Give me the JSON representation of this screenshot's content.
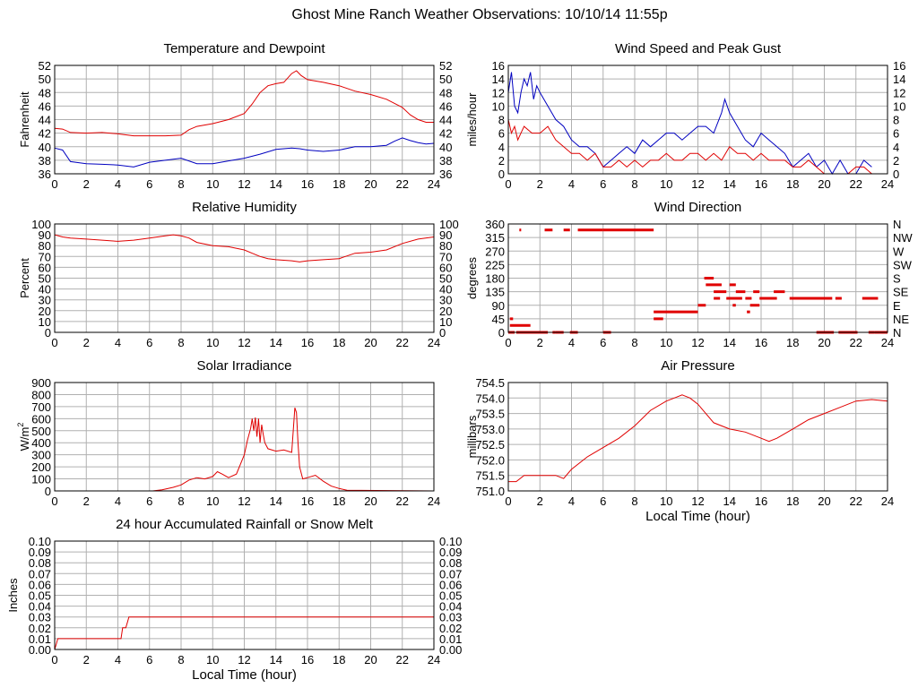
{
  "title": "Ghost Mine Ranch Weather Observations: 10/10/14 11:55p",
  "chart_data": [
    {
      "id": "temperature",
      "type": "line",
      "title": "Temperature and Dewpoint",
      "ylabel": "Fahrenheit",
      "xlabel": "",
      "xlim": [
        0,
        24
      ],
      "ylim": [
        36,
        52
      ],
      "xticks": [
        "0",
        "2",
        "4",
        "6",
        "8",
        "10",
        "12",
        "14",
        "16",
        "18",
        "20",
        "22",
        "24"
      ],
      "yticks": [
        "36",
        "38",
        "40",
        "42",
        "44",
        "46",
        "48",
        "50",
        "52"
      ],
      "right_ticks": [
        "36",
        "38",
        "40",
        "42",
        "44",
        "46",
        "48",
        "50",
        "52"
      ],
      "grid": true,
      "series": [
        {
          "color": "#e00000",
          "x": [
            0,
            0.5,
            1,
            2,
            3,
            4,
            5,
            6,
            7,
            8,
            8.5,
            9,
            10,
            11,
            12,
            12.5,
            13,
            13.5,
            14,
            14.5,
            15,
            15.3,
            15.6,
            16,
            17,
            18,
            19,
            20,
            21,
            22,
            22.5,
            23,
            23.5,
            24
          ],
          "values": [
            42.7,
            42.6,
            42.1,
            42.0,
            42.1,
            41.9,
            41.6,
            41.6,
            41.6,
            41.7,
            42.5,
            43.0,
            43.4,
            44.0,
            44.9,
            46.3,
            48.0,
            49.0,
            49.3,
            49.5,
            50.8,
            51.2,
            50.5,
            49.9,
            49.5,
            49.0,
            48.2,
            47.7,
            47.0,
            45.8,
            44.7,
            44.0,
            43.6,
            43.6
          ]
        },
        {
          "color": "#0000c0",
          "x": [
            0,
            0.5,
            1,
            2,
            3,
            4,
            5,
            6,
            7,
            8,
            9,
            10,
            11,
            12,
            13,
            14,
            15,
            15.5,
            16,
            17,
            18,
            19,
            20,
            21,
            21.5,
            22,
            22.5,
            23,
            23.5,
            24
          ],
          "values": [
            39.8,
            39.5,
            37.8,
            37.5,
            37.4,
            37.3,
            37.0,
            37.7,
            38.0,
            38.3,
            37.5,
            37.5,
            37.9,
            38.3,
            38.9,
            39.6,
            39.8,
            39.7,
            39.5,
            39.3,
            39.5,
            40.0,
            40.0,
            40.2,
            40.8,
            41.3,
            40.9,
            40.6,
            40.4,
            40.5
          ]
        }
      ]
    },
    {
      "id": "wind-speed",
      "type": "line",
      "title": "Wind Speed and Peak Gust",
      "ylabel": "miles/hour",
      "xlabel": "",
      "xlim": [
        0,
        24
      ],
      "ylim": [
        0,
        16
      ],
      "xticks": [
        "0",
        "2",
        "4",
        "6",
        "8",
        "10",
        "12",
        "14",
        "16",
        "18",
        "20",
        "22",
        "24"
      ],
      "yticks": [
        "0",
        "2",
        "4",
        "6",
        "8",
        "10",
        "12",
        "14",
        "16"
      ],
      "right_ticks": [
        "0",
        "2",
        "4",
        "6",
        "8",
        "10",
        "12",
        "14",
        "16"
      ],
      "grid": true,
      "series": [
        {
          "color": "#0000c0",
          "x": [
            0,
            0.2,
            0.4,
            0.6,
            0.8,
            1,
            1.2,
            1.4,
            1.6,
            1.8,
            2,
            2.5,
            3,
            3.5,
            4,
            4.5,
            5,
            5.5,
            6,
            6.5,
            7,
            7.5,
            8,
            8.5,
            9,
            9.5,
            10,
            10.5,
            11,
            11.5,
            12,
            12.5,
            13,
            13.5,
            13.7,
            14,
            14.5,
            15,
            15.5,
            16,
            16.5,
            17,
            17.5,
            18,
            18.5,
            19,
            19.5,
            20,
            20.5,
            21,
            21.5,
            22,
            22.5,
            23
          ],
          "values": [
            12,
            15,
            10,
            9,
            12,
            14,
            13,
            15,
            11,
            13,
            12,
            10,
            8,
            7,
            5,
            4,
            4,
            3,
            1,
            2,
            3,
            4,
            3,
            5,
            4,
            5,
            6,
            6,
            5,
            6,
            7,
            7,
            6,
            9,
            11,
            9,
            7,
            5,
            4,
            6,
            5,
            4,
            3,
            1,
            2,
            3,
            1,
            2,
            0,
            2,
            0,
            0,
            2,
            1
          ]
        },
        {
          "color": "#e00000",
          "x": [
            0,
            0.2,
            0.4,
            0.6,
            0.8,
            1,
            1.5,
            2,
            2.5,
            3,
            3.5,
            4,
            4.5,
            5,
            5.5,
            6,
            6.5,
            7,
            7.5,
            8,
            8.5,
            9,
            9.5,
            10,
            10.5,
            11,
            11.5,
            12,
            12.5,
            13,
            13.5,
            14,
            14.5,
            15,
            15.5,
            16,
            16.5,
            17,
            17.5,
            18,
            18.5,
            19,
            19.5,
            20,
            20.5,
            21,
            21.5,
            22,
            22.5,
            23
          ],
          "values": [
            8,
            6,
            7,
            5,
            6,
            7,
            6,
            6,
            7,
            5,
            4,
            3,
            3,
            2,
            3,
            1,
            1,
            2,
            1,
            2,
            1,
            2,
            2,
            3,
            2,
            2,
            3,
            3,
            2,
            3,
            2,
            4,
            3,
            3,
            2,
            3,
            2,
            2,
            2,
            1,
            1,
            2,
            1,
            0,
            0,
            0,
            0,
            1,
            1,
            0
          ]
        }
      ]
    },
    {
      "id": "humidity",
      "type": "line",
      "title": "Relative Humidity",
      "ylabel": "Percent",
      "xlabel": "",
      "xlim": [
        0,
        24
      ],
      "ylim": [
        0,
        100
      ],
      "xticks": [
        "0",
        "2",
        "4",
        "6",
        "8",
        "10",
        "12",
        "14",
        "16",
        "18",
        "20",
        "22",
        "24"
      ],
      "yticks": [
        "0",
        "10",
        "20",
        "30",
        "40",
        "50",
        "60",
        "70",
        "80",
        "90",
        "100"
      ],
      "right_ticks": [
        "0",
        "10",
        "20",
        "30",
        "40",
        "50",
        "60",
        "70",
        "80",
        "90",
        "100"
      ],
      "grid": true,
      "series": [
        {
          "color": "#e00000",
          "x": [
            0,
            0.5,
            1,
            2,
            3,
            4,
            5,
            6,
            7,
            7.5,
            8,
            8.5,
            9,
            10,
            11,
            12,
            12.5,
            13,
            13.5,
            14,
            15,
            15.5,
            16,
            17,
            18,
            19,
            20,
            21,
            22,
            23,
            24
          ],
          "values": [
            90,
            88,
            87,
            86,
            85,
            84,
            85,
            87,
            89,
            90,
            89,
            87,
            83,
            80,
            79,
            76,
            73,
            70,
            68,
            67,
            66,
            65,
            66,
            67,
            68,
            73,
            74,
            76,
            82,
            86,
            88
          ]
        }
      ]
    },
    {
      "id": "wind-direction",
      "type": "scatter",
      "title": "Wind Direction",
      "ylabel": "degrees",
      "xlabel": "",
      "xlim": [
        0,
        24
      ],
      "ylim": [
        0,
        360
      ],
      "xticks": [
        "0",
        "2",
        "4",
        "6",
        "8",
        "10",
        "12",
        "14",
        "16",
        "18",
        "20",
        "22",
        "24"
      ],
      "yticks": [
        "0",
        "45",
        "90",
        "135",
        "180",
        "225",
        "270",
        "315",
        "360"
      ],
      "right_ticks": [
        "N",
        "NE",
        "E",
        "SE",
        "S",
        "SW",
        "W",
        "NW",
        "N"
      ],
      "grid": true,
      "segments": [
        {
          "x": [
            0.0,
            0.4
          ],
          "y": 0
        },
        {
          "x": [
            0.1,
            1.4
          ],
          "y": 23
        },
        {
          "x": [
            0.1,
            0.3
          ],
          "y": 45
        },
        {
          "x": [
            0.7,
            0.8
          ],
          "y": 340
        },
        {
          "x": [
            0.5,
            2.5
          ],
          "y": 0
        },
        {
          "x": [
            2.3,
            2.8
          ],
          "y": 340
        },
        {
          "x": [
            2.8,
            3.0
          ],
          "y": 0
        },
        {
          "x": [
            3.0,
            3.5
          ],
          "y": 0
        },
        {
          "x": [
            3.5,
            3.9
          ],
          "y": 340
        },
        {
          "x": [
            3.9,
            4.4
          ],
          "y": 0
        },
        {
          "x": [
            4.4,
            6.0
          ],
          "y": 340
        },
        {
          "x": [
            6.0,
            6.5
          ],
          "y": 0
        },
        {
          "x": [
            6.0,
            9.2
          ],
          "y": 340
        },
        {
          "x": [
            9.2,
            9.8
          ],
          "y": 45
        },
        {
          "x": [
            9.2,
            12.0
          ],
          "y": 68
        },
        {
          "x": [
            12.0,
            12.5
          ],
          "y": 90
        },
        {
          "x": [
            12.4,
            13.0
          ],
          "y": 180
        },
        {
          "x": [
            12.5,
            13.5
          ],
          "y": 158
        },
        {
          "x": [
            13.0,
            13.8
          ],
          "y": 135
        },
        {
          "x": [
            13.0,
            13.4
          ],
          "y": 113
        },
        {
          "x": [
            13.8,
            14.8
          ],
          "y": 113
        },
        {
          "x": [
            14.0,
            14.4
          ],
          "y": 158
        },
        {
          "x": [
            14.2,
            14.4
          ],
          "y": 90
        },
        {
          "x": [
            14.4,
            15.0
          ],
          "y": 135
        },
        {
          "x": [
            15.0,
            15.4
          ],
          "y": 113
        },
        {
          "x": [
            15.1,
            15.3
          ],
          "y": 68
        },
        {
          "x": [
            15.3,
            15.9
          ],
          "y": 90
        },
        {
          "x": [
            15.5,
            15.9
          ],
          "y": 135
        },
        {
          "x": [
            15.9,
            17.0
          ],
          "y": 113
        },
        {
          "x": [
            16.8,
            17.5
          ],
          "y": 135
        },
        {
          "x": [
            17.8,
            20.5
          ],
          "y": 113
        },
        {
          "x": [
            19.5,
            20.6
          ],
          "y": 0
        },
        {
          "x": [
            20.7,
            21.1
          ],
          "y": 113
        },
        {
          "x": [
            20.9,
            22.1
          ],
          "y": 0
        },
        {
          "x": [
            22.4,
            23.4
          ],
          "y": 113
        },
        {
          "x": [
            22.8,
            23.2
          ],
          "y": 0
        },
        {
          "x": [
            23.2,
            24.0
          ],
          "y": 0
        }
      ]
    },
    {
      "id": "solar",
      "type": "line",
      "title": "Solar Irradiance",
      "ylabel": "W/m",
      "ylabel_sup": "2",
      "xlabel": "",
      "xlim": [
        0,
        24
      ],
      "ylim": [
        0,
        900
      ],
      "xticks": [
        "0",
        "2",
        "4",
        "6",
        "8",
        "10",
        "12",
        "14",
        "16",
        "18",
        "20",
        "22",
        "24"
      ],
      "yticks": [
        "0",
        "100",
        "200",
        "300",
        "400",
        "500",
        "600",
        "700",
        "800",
        "900"
      ],
      "right_ticks": [],
      "grid": true,
      "series": [
        {
          "color": "#e00000",
          "x": [
            0,
            6.2,
            6.8,
            7.5,
            8,
            8.5,
            9,
            9.5,
            10,
            10.3,
            10.6,
            11,
            11.5,
            12,
            12.2,
            12.4,
            12.5,
            12.6,
            12.7,
            12.8,
            12.9,
            13,
            13.1,
            13.2,
            13.3,
            13.5,
            14,
            14.5,
            15,
            15.1,
            15.2,
            15.3,
            15.4,
            15.5,
            15.7,
            16,
            16.5,
            17,
            17.5,
            18,
            18.5,
            24
          ],
          "values": [
            0,
            0,
            10,
            30,
            50,
            90,
            110,
            100,
            120,
            160,
            140,
            110,
            140,
            300,
            420,
            520,
            600,
            500,
            610,
            450,
            600,
            400,
            550,
            470,
            400,
            350,
            330,
            340,
            320,
            500,
            690,
            650,
            400,
            200,
            100,
            110,
            130,
            80,
            40,
            20,
            5,
            0
          ]
        }
      ]
    },
    {
      "id": "pressure",
      "type": "line",
      "title": "Air Pressure",
      "ylabel": "millibars",
      "xlabel": "Local Time (hour)",
      "xlim": [
        0,
        24
      ],
      "ylim": [
        751.0,
        754.5
      ],
      "xticks": [
        "0",
        "2",
        "4",
        "6",
        "8",
        "10",
        "12",
        "14",
        "16",
        "18",
        "20",
        "22",
        "24"
      ],
      "yticks": [
        "751.0",
        "751.5",
        "752.0",
        "752.5",
        "753.0",
        "753.5",
        "754.0",
        "754.5"
      ],
      "right_ticks": [],
      "grid": true,
      "series": [
        {
          "color": "#e00000",
          "x": [
            0,
            0.5,
            1,
            2,
            3,
            3.5,
            4,
            5,
            6,
            7,
            8,
            9,
            10,
            10.5,
            11,
            11.5,
            12,
            12.5,
            13,
            14,
            15,
            16,
            16.5,
            17,
            18,
            19,
            20,
            21,
            22,
            23,
            24
          ],
          "values": [
            751.3,
            751.3,
            751.5,
            751.5,
            751.5,
            751.4,
            751.7,
            752.1,
            752.4,
            752.7,
            753.1,
            753.6,
            753.9,
            754.0,
            754.1,
            754.0,
            753.8,
            753.5,
            753.2,
            753.0,
            752.9,
            752.7,
            752.6,
            752.7,
            753.0,
            753.3,
            753.5,
            753.7,
            753.9,
            753.95,
            753.9
          ]
        }
      ]
    },
    {
      "id": "rainfall",
      "type": "line",
      "title": "24 hour Accumulated Rainfall or Snow Melt",
      "ylabel": "Inches",
      "xlabel": "Local Time (hour)",
      "xlim": [
        0,
        24
      ],
      "ylim": [
        0,
        0.1
      ],
      "xticks": [
        "0",
        "2",
        "4",
        "6",
        "8",
        "10",
        "12",
        "14",
        "16",
        "18",
        "20",
        "22",
        "24"
      ],
      "yticks": [
        "0.00",
        "0.01",
        "0.02",
        "0.03",
        "0.04",
        "0.05",
        "0.06",
        "0.07",
        "0.08",
        "0.09",
        "0.10"
      ],
      "right_ticks": [
        "0.00",
        "0.01",
        "0.02",
        "0.03",
        "0.04",
        "0.05",
        "0.06",
        "0.07",
        "0.08",
        "0.09",
        "0.10"
      ],
      "grid": true,
      "series": [
        {
          "color": "#e00000",
          "x": [
            0,
            0.1,
            0.2,
            4.2,
            4.3,
            4.5,
            4.6,
            4.7,
            24
          ],
          "values": [
            0,
            0.005,
            0.01,
            0.01,
            0.02,
            0.02,
            0.025,
            0.03,
            0.03
          ]
        }
      ]
    }
  ]
}
